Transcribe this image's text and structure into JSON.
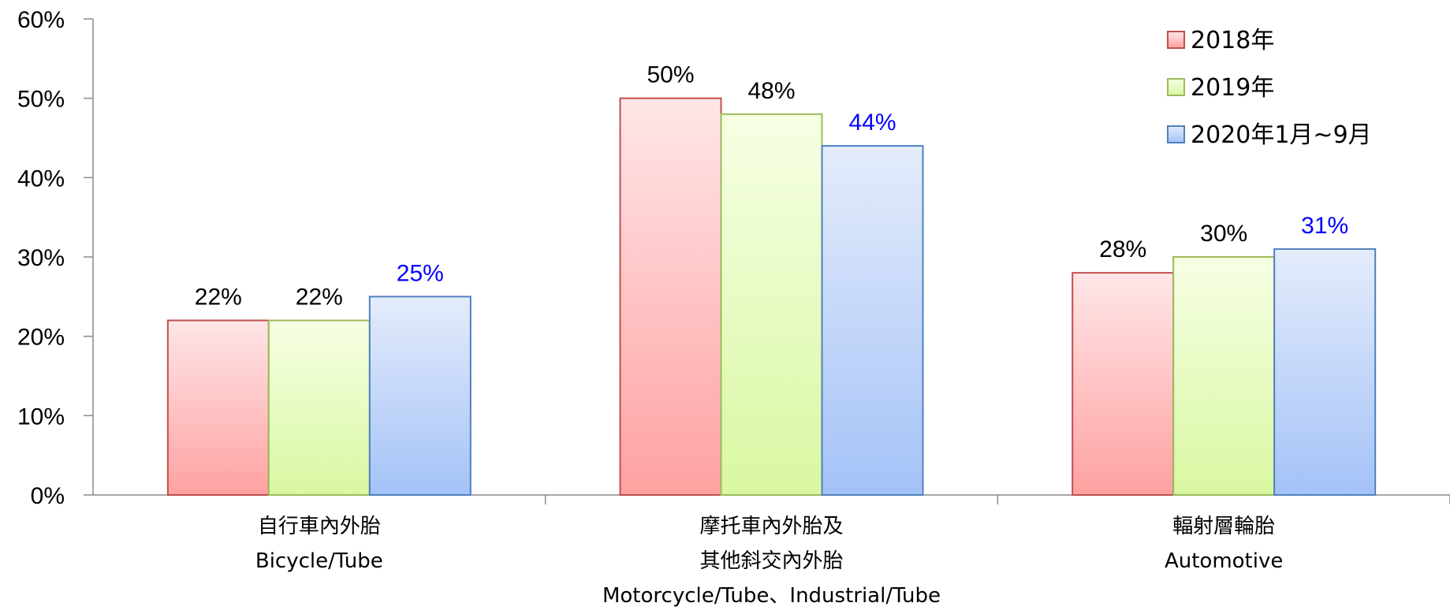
{
  "chart_data": {
    "type": "bar",
    "categories": [
      [
        "自行車內外胎",
        "Bicycle/Tube"
      ],
      [
        "摩托車內外胎及",
        "其他斜交內外胎",
        "Motorcycle/Tube、Industrial/Tube"
      ],
      [
        "輻射層輪胎",
        "Automotive"
      ]
    ],
    "series": [
      {
        "name": "2018年",
        "values": [
          22,
          50,
          28
        ],
        "labels": [
          "22%",
          "50%",
          "28%"
        ],
        "color": "#c0504d",
        "fill_top": "#ffe6e8",
        "fill_bottom": "#ffa1a1",
        "label_color": "#000000"
      },
      {
        "name": "2019年",
        "values": [
          22,
          48,
          30
        ],
        "labels": [
          "22%",
          "48%",
          "30%"
        ],
        "color": "#9bbb59",
        "fill_top": "#f6ffe4",
        "fill_bottom": "#d9f7a2",
        "label_color": "#000000"
      },
      {
        "name": "2020年1月~9月",
        "values": [
          25,
          44,
          31
        ],
        "labels": [
          "25%",
          "44%",
          "31%"
        ],
        "color": "#4f81bd",
        "fill_top": "#e4ecfb",
        "fill_bottom": "#a4c2f7",
        "label_color": "#0000ff"
      }
    ],
    "yticks": [
      "0%",
      "10%",
      "20%",
      "30%",
      "40%",
      "50%",
      "60%"
    ],
    "ylim": [
      0,
      60
    ],
    "legend_position": "top-right",
    "grid": false
  }
}
